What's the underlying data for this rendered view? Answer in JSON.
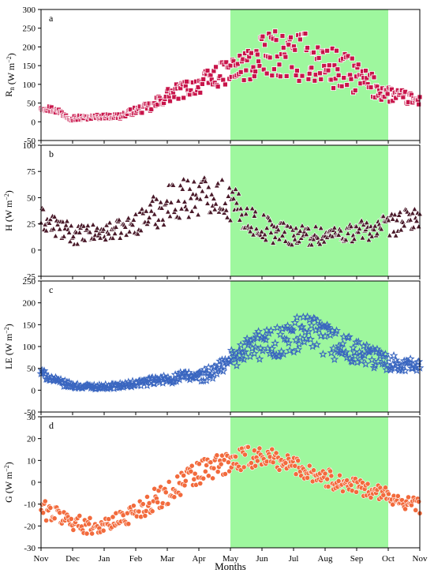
{
  "colors": {
    "growing_season_shade": "#9ef79e",
    "rn_series": "#c8144a",
    "h_series": "#4a1a2a",
    "le_series": "#3a66c0",
    "g_series": "#f26a3c",
    "axes": "#000000"
  },
  "xaxis": {
    "title": "Months",
    "tick_labels": [
      "Nov",
      "Dec",
      "Jan",
      "Feb",
      "Mar",
      "Apr",
      "May",
      "Jun",
      "Jul",
      "Aug",
      "Sep",
      "Oct",
      "Nov"
    ]
  },
  "chart_data": [
    {
      "type": "scatter",
      "panel_letter": "a",
      "ylabel": "R_n (W m^-2)",
      "ylabel_parts": {
        "main": "R",
        "sub": "n",
        "units": " (W m",
        "sup": "−2",
        "close": ")"
      },
      "ylim": [
        -50,
        300
      ],
      "yticks": [
        "-50",
        "0",
        "50",
        "100",
        "150",
        "200",
        "250",
        "300"
      ],
      "xlim": [
        0,
        12
      ],
      "shaded_x": [
        6,
        11
      ],
      "marker": "square",
      "series": [
        {
          "color": "#c8144a",
          "anchors": [
            [
              0,
              40
            ],
            [
              0.5,
              30
            ],
            [
              1,
              10
            ],
            [
              1.5,
              12
            ],
            [
              2,
              14
            ],
            [
              2.5,
              15
            ],
            [
              3,
              30
            ],
            [
              3.5,
              40
            ],
            [
              4,
              70
            ],
            [
              4.5,
              85
            ],
            [
              5,
              100
            ],
            [
              5.5,
              120
            ],
            [
              6,
              135
            ],
            [
              6.5,
              150
            ],
            [
              7,
              170
            ],
            [
              7.5,
              185
            ],
            [
              8,
              170
            ],
            [
              8.5,
              175
            ],
            [
              9,
              150
            ],
            [
              9.5,
              135
            ],
            [
              10,
              120
            ],
            [
              10.5,
              95
            ],
            [
              11,
              75
            ],
            [
              11.5,
              65
            ],
            [
              12,
              55
            ]
          ],
          "noise": [
            [
              0,
              8
            ],
            [
              2,
              5
            ],
            [
              3,
              8
            ],
            [
              4,
              18
            ],
            [
              5,
              22
            ],
            [
              6,
              30
            ],
            [
              7,
              50
            ],
            [
              8,
              58
            ],
            [
              9,
              55
            ],
            [
              10,
              38
            ],
            [
              11,
              20
            ],
            [
              12,
              12
            ]
          ]
        }
      ]
    },
    {
      "type": "scatter",
      "panel_letter": "b",
      "ylabel": "H (W m^-2)",
      "ylabel_parts": {
        "main": "H",
        "sub": "",
        "units": " (W m",
        "sup": "−2",
        "close": ")"
      },
      "ylim": [
        -25,
        100
      ],
      "yticks": [
        "-25",
        "0",
        "25",
        "50",
        "75",
        "100"
      ],
      "xlim": [
        0,
        12
      ],
      "shaded_x": [
        6,
        11
      ],
      "marker": "triangle",
      "series": [
        {
          "color": "#4a1a2a",
          "anchors": [
            [
              0,
              30
            ],
            [
              0.5,
              22
            ],
            [
              1,
              15
            ],
            [
              1.5,
              15
            ],
            [
              2,
              17
            ],
            [
              2.5,
              20
            ],
            [
              3,
              25
            ],
            [
              3.5,
              35
            ],
            [
              4,
              45
            ],
            [
              4.5,
              50
            ],
            [
              5,
              52
            ],
            [
              5.5,
              55
            ],
            [
              6,
              45
            ],
            [
              6.5,
              32
            ],
            [
              7,
              22
            ],
            [
              7.5,
              18
            ],
            [
              8,
              15
            ],
            [
              8.5,
              14
            ],
            [
              9,
              14
            ],
            [
              9.5,
              16
            ],
            [
              10,
              18
            ],
            [
              10.5,
              20
            ],
            [
              11,
              22
            ],
            [
              11.5,
              28
            ],
            [
              12,
              32
            ]
          ],
          "noise": [
            [
              0,
              10
            ],
            [
              2,
              7
            ],
            [
              3,
              9
            ],
            [
              4,
              18
            ],
            [
              5,
              17
            ],
            [
              6,
              16
            ],
            [
              7,
              12
            ],
            [
              8,
              9
            ],
            [
              9,
              8
            ],
            [
              10,
              9
            ],
            [
              11,
              10
            ],
            [
              12,
              9
            ]
          ]
        }
      ]
    },
    {
      "type": "scatter",
      "panel_letter": "c",
      "ylabel": "LE (W m^-2)",
      "ylabel_parts": {
        "main": "LE",
        "sub": "",
        "units": " (W m",
        "sup": "−2",
        "close": ")"
      },
      "ylim": [
        -50,
        250
      ],
      "yticks": [
        "-50",
        "0",
        "50",
        "100",
        "150",
        "200",
        "250"
      ],
      "xlim": [
        0,
        12
      ],
      "shaded_x": [
        6,
        11
      ],
      "marker": "star",
      "series": [
        {
          "color": "#3a66c0",
          "anchors": [
            [
              0,
              40
            ],
            [
              0.5,
              20
            ],
            [
              1,
              10
            ],
            [
              1.5,
              8
            ],
            [
              2,
              8
            ],
            [
              2.5,
              10
            ],
            [
              3,
              15
            ],
            [
              3.5,
              20
            ],
            [
              4,
              25
            ],
            [
              4.5,
              30
            ],
            [
              5,
              32
            ],
            [
              5.5,
              40
            ],
            [
              6,
              70
            ],
            [
              6.5,
              95
            ],
            [
              7,
              105
            ],
            [
              7.5,
              110
            ],
            [
              8,
              120
            ],
            [
              8.5,
              125
            ],
            [
              9,
              115
            ],
            [
              9.5,
              100
            ],
            [
              10,
              85
            ],
            [
              10.5,
              75
            ],
            [
              11,
              65
            ],
            [
              11.5,
              60
            ],
            [
              12,
              55
            ]
          ],
          "noise": [
            [
              0,
              8
            ],
            [
              1,
              5
            ],
            [
              2,
              4
            ],
            [
              3,
              6
            ],
            [
              4,
              10
            ],
            [
              5,
              12
            ],
            [
              6,
              18
            ],
            [
              7,
              32
            ],
            [
              8,
              40
            ],
            [
              9,
              38
            ],
            [
              10,
              25
            ],
            [
              11,
              18
            ],
            [
              12,
              10
            ]
          ]
        }
      ]
    },
    {
      "type": "scatter",
      "panel_letter": "d",
      "ylabel": "G (W m^-2)",
      "ylabel_parts": {
        "main": "G",
        "sub": "",
        "units": " (W m",
        "sup": "−2",
        "close": ")"
      },
      "ylim": [
        -30,
        30
      ],
      "yticks": [
        "-30",
        "-20",
        "-10",
        "0",
        "10",
        "20",
        "30"
      ],
      "xlim": [
        0,
        12
      ],
      "shaded_x": [
        6,
        11
      ],
      "marker": "circle",
      "series": [
        {
          "color": "#f26a3c",
          "anchors": [
            [
              0,
              -12
            ],
            [
              0.5,
              -15
            ],
            [
              1,
              -18
            ],
            [
              1.5,
              -20
            ],
            [
              2,
              -20
            ],
            [
              2.5,
              -17
            ],
            [
              3,
              -13
            ],
            [
              3.5,
              -9
            ],
            [
              4,
              -5
            ],
            [
              4.5,
              0
            ],
            [
              5,
              4
            ],
            [
              5.5,
              7
            ],
            [
              6,
              9
            ],
            [
              6.5,
              11
            ],
            [
              7,
              12
            ],
            [
              7.5,
              10
            ],
            [
              8,
              8
            ],
            [
              8.5,
              5
            ],
            [
              9,
              2
            ],
            [
              9.5,
              0
            ],
            [
              10,
              -2
            ],
            [
              10.5,
              -4
            ],
            [
              11,
              -6
            ],
            [
              11.5,
              -9
            ],
            [
              12,
              -11
            ]
          ],
          "noise": [
            [
              0,
              4
            ],
            [
              2,
              3
            ],
            [
              3,
              4
            ],
            [
              4,
              5
            ],
            [
              5,
              6
            ],
            [
              6,
              5
            ],
            [
              7,
              4
            ],
            [
              8,
              4
            ],
            [
              9,
              4
            ],
            [
              10,
              3
            ],
            [
              11,
              3
            ],
            [
              12,
              3
            ]
          ]
        }
      ]
    }
  ]
}
